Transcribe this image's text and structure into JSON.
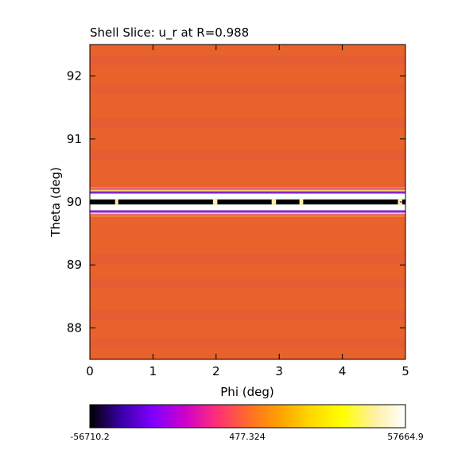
{
  "chart_data": {
    "type": "heatmap",
    "title": "Shell Slice: u_r at R=0.988",
    "xlabel": "Phi (deg)",
    "ylabel": "Theta (deg)",
    "xlim": [
      0,
      5
    ],
    "ylim": [
      87.5,
      92.5
    ],
    "xticks": [
      0,
      1,
      2,
      3,
      4,
      5
    ],
    "yticks": [
      88,
      89,
      90,
      91,
      92
    ],
    "colorbar": {
      "min_label": "-56710.2",
      "mid_label": "477.324",
      "max_label": "57664.9",
      "min": -56710.2,
      "mid": 477.324,
      "max": 57664.9,
      "colormap_stops": [
        "#000000",
        "#3a00a8",
        "#8000ff",
        "#cc00cc",
        "#ff2e7a",
        "#ff6a2a",
        "#ffa000",
        "#ffd800",
        "#ffff00",
        "#fff0a0",
        "#ffffff"
      ]
    },
    "background_color": "#e8622c",
    "band_color": "#e25a38",
    "bands_theta": [
      92.25,
      91.8,
      91.25,
      90.75,
      89.1,
      88.7,
      88.2,
      87.75
    ],
    "feature": {
      "description_value_theta_center": 90.0,
      "theta_halfwidth": 0.15,
      "dark_core_theta": [
        89.96,
        90.04
      ],
      "light_gaps_phi": [
        [
          0.4,
          0.45
        ],
        [
          1.95,
          2.02
        ],
        [
          2.88,
          2.95
        ],
        [
          3.32,
          3.38
        ],
        [
          4.88,
          4.95
        ]
      ],
      "magenta_segments_phi": [
        [
          0.4,
          0.6
        ],
        [
          0.42,
          0.5
        ]
      ],
      "colors": {
        "outer_glow": "#ffd34a",
        "light_rim": "#fff6d8",
        "white": "#ffffff",
        "core": "#000000",
        "purple_edge": "#7a10c8",
        "magenta_edge": "#d0179c"
      }
    }
  }
}
